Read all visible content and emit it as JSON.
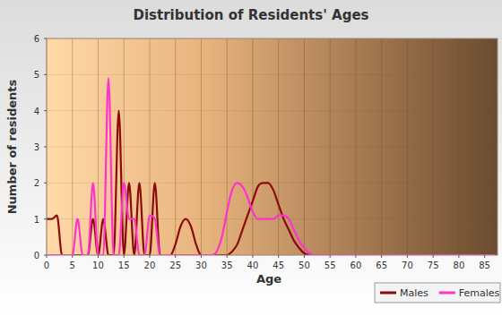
{
  "chart_data": {
    "type": "line",
    "title": "Distribution of Residents' Ages",
    "x_label": "Age",
    "y_label": "Number of residents",
    "x": [
      0,
      1,
      2,
      3,
      4,
      5,
      6,
      7,
      8,
      9,
      10,
      11,
      12,
      13,
      14,
      15,
      16,
      17,
      18,
      19,
      20,
      21,
      22,
      23,
      24,
      25,
      26,
      27,
      28,
      29,
      30,
      31,
      32,
      33,
      34,
      35,
      36,
      37,
      38,
      39,
      40,
      41,
      42,
      43,
      44,
      45,
      46,
      47,
      48,
      49,
      50,
      51,
      52,
      53,
      54,
      55,
      56,
      57,
      58,
      59,
      60,
      61,
      62,
      63,
      64,
      65,
      66,
      67,
      68,
      69,
      70,
      71,
      72,
      73,
      74,
      75,
      76,
      77,
      78,
      79,
      80,
      81,
      82,
      83,
      84,
      85,
      86,
      87
    ],
    "series": [
      {
        "name": "Males",
        "color": "#8b0a0a",
        "values": [
          1,
          1,
          1.1,
          0,
          0,
          0,
          0,
          0,
          0,
          1,
          0,
          1,
          0,
          0,
          4,
          0,
          2,
          0,
          2,
          0,
          0,
          2,
          0,
          0,
          0,
          0.3,
          0.8,
          1,
          0.8,
          0.3,
          0,
          0,
          0,
          0,
          0,
          0,
          0.1,
          0.3,
          0.7,
          1.1,
          1.5,
          1.9,
          2,
          2,
          1.8,
          1.4,
          1,
          0.7,
          0.4,
          0.2,
          0.05,
          0,
          0,
          0,
          0,
          0,
          0,
          0,
          0,
          0,
          0,
          0,
          0,
          0,
          0,
          0,
          0,
          0,
          0,
          0,
          0,
          0,
          0,
          0,
          0,
          0,
          0,
          0,
          0,
          0,
          0,
          0,
          0,
          0,
          0,
          0,
          0,
          0
        ]
      },
      {
        "name": "Females",
        "color": "#ff33cc",
        "values": [
          0,
          0,
          0,
          0,
          0,
          0,
          1,
          0,
          0,
          2,
          0,
          0,
          4.9,
          0,
          0,
          2,
          1,
          1,
          0,
          0,
          1.1,
          1,
          0,
          0,
          0,
          0,
          0,
          0,
          0,
          0,
          0,
          0,
          0,
          0.1,
          0.5,
          1.2,
          1.8,
          2,
          1.9,
          1.6,
          1.2,
          1,
          1,
          1,
          1,
          1.1,
          1.1,
          1,
          0.7,
          0.4,
          0.2,
          0.05,
          0,
          0,
          0,
          0,
          0,
          0,
          0,
          0,
          0,
          0,
          0,
          0,
          0,
          0,
          0,
          0,
          0,
          0,
          0,
          0,
          0,
          0,
          0,
          0,
          0,
          0,
          0,
          0,
          0,
          0,
          0,
          0,
          0,
          0,
          0,
          0
        ]
      }
    ],
    "xlim": [
      0,
      87.5
    ],
    "xticks": [
      0,
      5,
      10,
      15,
      20,
      25,
      30,
      35,
      40,
      45,
      50,
      55,
      60,
      65,
      70,
      75,
      80,
      85
    ],
    "ylim": [
      0,
      6
    ],
    "yticks": [
      0,
      1,
      2,
      3,
      4,
      5,
      6
    ],
    "grid": true,
    "legend": "bottom"
  }
}
